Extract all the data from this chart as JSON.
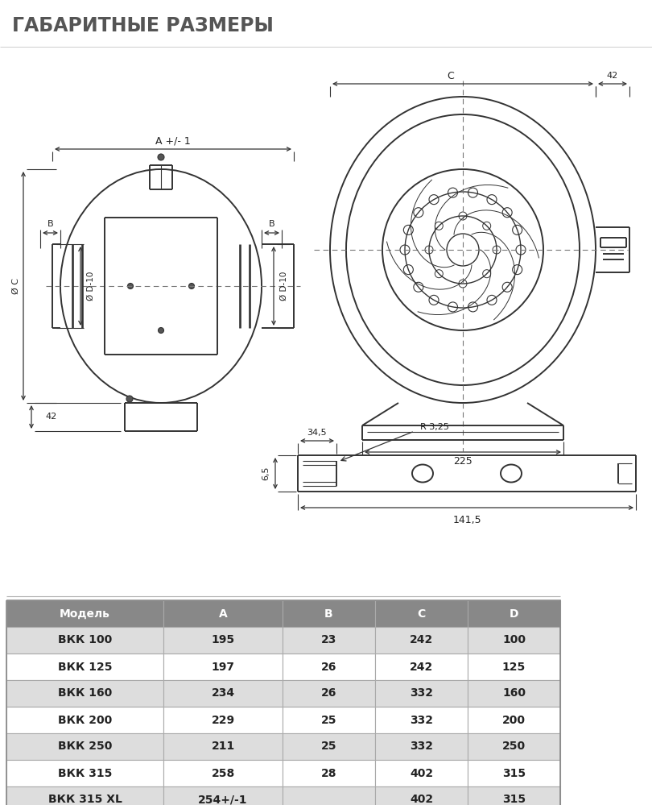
{
  "title": "ГАБАРИТНЫЕ РАЗМЕРЫ",
  "title_color": "#555555",
  "bg_color": "#ffffff",
  "table_headers": [
    "Модель",
    "A",
    "B",
    "C",
    "D"
  ],
  "table_header_bg": "#888888",
  "table_header_color": "#ffffff",
  "table_row_bg_odd": "#ffffff",
  "table_row_bg_even": "#dddddd",
  "table_rows": [
    [
      "ВКК 100",
      "195",
      "23",
      "242",
      "100"
    ],
    [
      "ВКК 125",
      "197",
      "26",
      "242",
      "125"
    ],
    [
      "ВКК 160",
      "234",
      "26",
      "332",
      "160"
    ],
    [
      "ВКК 200",
      "229",
      "25",
      "332",
      "200"
    ],
    [
      "ВКК 250",
      "211",
      "25",
      "332",
      "250"
    ],
    [
      "ВКК 315",
      "258",
      "28",
      "402",
      "315"
    ],
    [
      "ВКК 315 XL",
      "254+/-1",
      "",
      "402",
      "315"
    ]
  ],
  "line_color": "#333333"
}
